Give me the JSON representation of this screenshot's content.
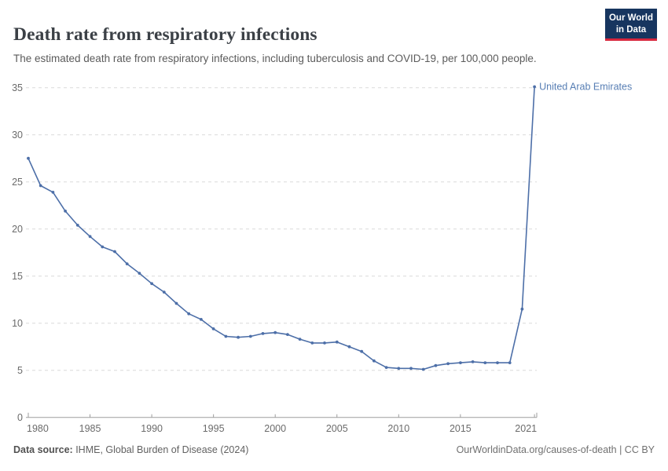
{
  "header": {
    "title": "Death rate from respiratory infections",
    "subtitle": "The estimated death rate from respiratory infections, including tuberculosis and COVID-19, per 100,000 people.",
    "logo": {
      "line1": "Our World",
      "line2": "in Data",
      "bg_color": "#17355f",
      "accent_color": "#d8273d"
    }
  },
  "chart_data": {
    "type": "line",
    "title": "Death rate from respiratory infections",
    "xlabel": "",
    "ylabel": "",
    "xlim": [
      1980,
      2021
    ],
    "ylim": [
      0,
      35
    ],
    "yticks": [
      0,
      5,
      10,
      15,
      20,
      25,
      30,
      35
    ],
    "xticks": [
      1980,
      1985,
      1990,
      1995,
      2000,
      2005,
      2010,
      2015,
      2021
    ],
    "grid": "horizontal-dashed",
    "legend_position": "end-of-line-label",
    "x": [
      1980,
      1981,
      1982,
      1983,
      1984,
      1985,
      1986,
      1987,
      1988,
      1989,
      1990,
      1991,
      1992,
      1993,
      1994,
      1995,
      1996,
      1997,
      1998,
      1999,
      2000,
      2001,
      2002,
      2003,
      2004,
      2005,
      2006,
      2007,
      2008,
      2009,
      2010,
      2011,
      2012,
      2013,
      2014,
      2015,
      2016,
      2017,
      2018,
      2019,
      2020,
      2021
    ],
    "series": [
      {
        "name": "United Arab Emirates",
        "color": "#4d6fa8",
        "values": [
          27.5,
          24.6,
          23.9,
          21.9,
          20.4,
          19.2,
          18.1,
          17.6,
          16.3,
          15.3,
          14.2,
          13.3,
          12.1,
          11.0,
          10.4,
          9.4,
          8.6,
          8.5,
          8.6,
          8.9,
          9.0,
          8.8,
          8.3,
          7.9,
          7.9,
          8.0,
          7.5,
          7.0,
          6.0,
          5.3,
          5.2,
          5.2,
          5.1,
          5.5,
          5.7,
          5.8,
          5.9,
          5.8,
          5.8,
          5.8,
          11.5,
          35.1
        ]
      }
    ]
  },
  "footer": {
    "source_label": "Data source:",
    "source_text": " IHME, Global Burden of Disease (2024)",
    "credit": "OurWorldinData.org/causes-of-death | CC BY"
  }
}
